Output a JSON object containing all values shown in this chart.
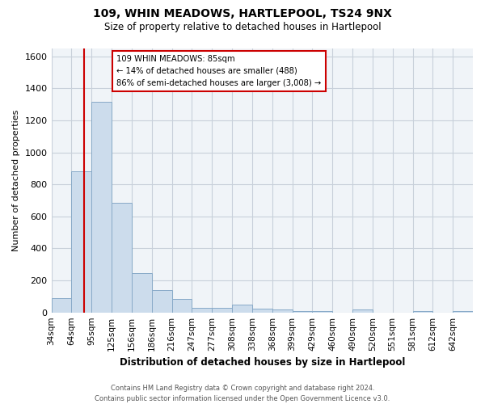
{
  "title": "109, WHIN MEADOWS, HARTLEPOOL, TS24 9NX",
  "subtitle": "Size of property relative to detached houses in Hartlepool",
  "xlabel": "Distribution of detached houses by size in Hartlepool",
  "ylabel": "Number of detached properties",
  "bin_labels": [
    "34sqm",
    "64sqm",
    "95sqm",
    "125sqm",
    "156sqm",
    "186sqm",
    "216sqm",
    "247sqm",
    "277sqm",
    "308sqm",
    "338sqm",
    "368sqm",
    "399sqm",
    "429sqm",
    "460sqm",
    "490sqm",
    "520sqm",
    "551sqm",
    "581sqm",
    "612sqm",
    "642sqm"
  ],
  "bar_heights": [
    88,
    880,
    1315,
    685,
    248,
    142,
    85,
    28,
    28,
    50,
    22,
    18,
    8,
    8,
    0,
    18,
    0,
    0,
    8,
    0,
    8
  ],
  "bar_color": "#ccdcec",
  "bar_edgecolor": "#88aac8",
  "vline_color": "#cc0000",
  "annotation_line1": "109 WHIN MEADOWS: 85sqm",
  "annotation_line2": "← 14% of detached houses are smaller (488)",
  "annotation_line3": "86% of semi-detached houses are larger (3,008) →",
  "annotation_box_color": "#ffffff",
  "annotation_box_edgecolor": "#cc0000",
  "ylim": [
    0,
    1650
  ],
  "yticks": [
    0,
    200,
    400,
    600,
    800,
    1000,
    1200,
    1400,
    1600
  ],
  "footer_line1": "Contains HM Land Registry data © Crown copyright and database right 2024.",
  "footer_line2": "Contains public sector information licensed under the Open Government Licence v3.0.",
  "bg_color": "#ffffff",
  "plot_bg_color": "#f0f4f8",
  "grid_color": "#c8d0da",
  "bin_width": 31,
  "property_size": 85
}
